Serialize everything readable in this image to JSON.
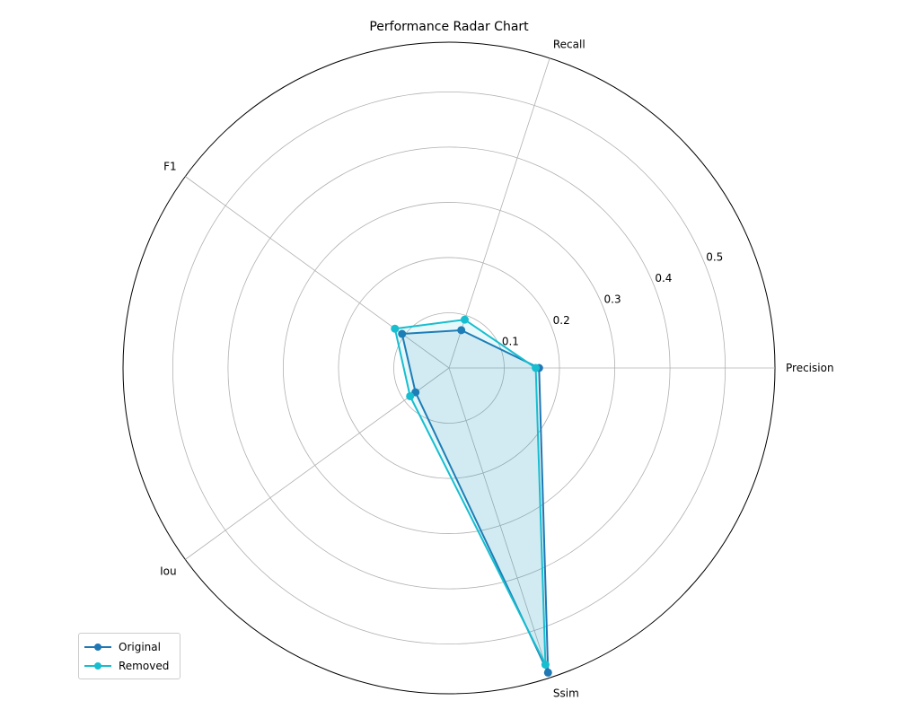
{
  "chart_data": {
    "type": "radar",
    "title": "Performance Radar Chart",
    "categories": [
      "Precision",
      "Recall",
      "F1",
      "Iou",
      "Ssim"
    ],
    "radial_ticks": [
      0.1,
      0.2,
      0.3,
      0.4,
      0.5
    ],
    "rlim": [
      0,
      0.59
    ],
    "grid": true,
    "legend_position": "lower-left",
    "series": [
      {
        "name": "Original",
        "values": [
          0.163,
          0.072,
          0.105,
          0.075,
          0.58
        ],
        "color": "#1f77b4",
        "fill": true
      },
      {
        "name": "Removed",
        "values": [
          0.157,
          0.092,
          0.121,
          0.087,
          0.565
        ],
        "color": "#17becf",
        "fill": true
      }
    ]
  }
}
